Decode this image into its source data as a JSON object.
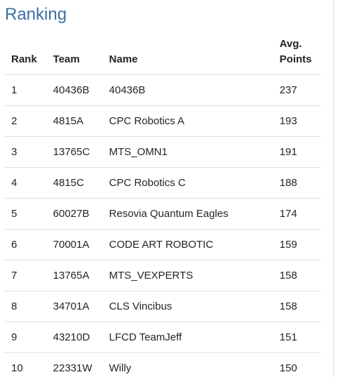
{
  "title": "Ranking",
  "columns": {
    "rank": "Rank",
    "team": "Team",
    "name": "Name",
    "points_line1": "Avg.",
    "points_line2": "Points"
  },
  "rows": [
    {
      "rank": "1",
      "team": "40436B",
      "name": "40436B",
      "points": "237"
    },
    {
      "rank": "2",
      "team": "4815A",
      "name": "CPC Robotics A",
      "points": "193"
    },
    {
      "rank": "3",
      "team": "13765C",
      "name": "MTS_OMN1",
      "points": "191"
    },
    {
      "rank": "4",
      "team": "4815C",
      "name": "CPC Robotics C",
      "points": "188"
    },
    {
      "rank": "5",
      "team": "60027B",
      "name": "Resovia Quantum Eagles",
      "points": "174"
    },
    {
      "rank": "6",
      "team": "70001A",
      "name": "CODE ART ROBOTIC",
      "points": "159"
    },
    {
      "rank": "7",
      "team": "13765A",
      "name": "MTS_VEXPERTS",
      "points": "158"
    },
    {
      "rank": "8",
      "team": "34701A",
      "name": "CLS Vincibus",
      "points": "158"
    },
    {
      "rank": "9",
      "team": "43210D",
      "name": "LFCD TeamJeff",
      "points": "151"
    },
    {
      "rank": "10",
      "team": "22331W",
      "name": "Willy",
      "points": "150"
    }
  ]
}
